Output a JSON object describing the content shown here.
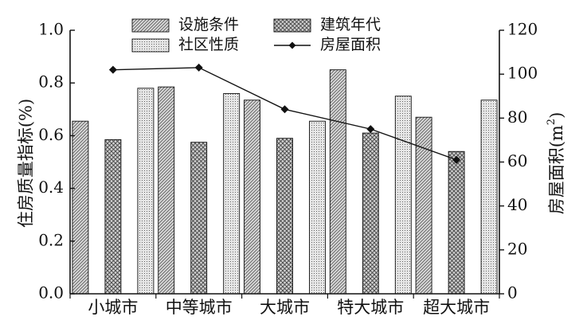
{
  "chart_data": {
    "type": "bar",
    "categories": [
      "小城市",
      "中等城市",
      "大城市",
      "特大城市",
      "超大城市"
    ],
    "series": [
      {
        "name": "设施条件",
        "axis": "left",
        "pattern": "diagonal",
        "values": [
          0.655,
          0.785,
          0.735,
          0.85,
          0.67
        ]
      },
      {
        "name": "建筑年代",
        "axis": "left",
        "pattern": "crosshatch",
        "values": [
          0.585,
          0.575,
          0.59,
          0.61,
          0.54
        ]
      },
      {
        "name": "社区性质",
        "axis": "left",
        "pattern": "dots",
        "values": [
          0.78,
          0.76,
          0.655,
          0.75,
          0.735
        ]
      },
      {
        "name": "房屋面积",
        "axis": "right",
        "type": "line",
        "marker": "diamond",
        "values": [
          102,
          103,
          84,
          75,
          61
        ]
      }
    ],
    "ylabel": "住房质量指标(%)",
    "ylabel_right_prefix": "房屋面积(m",
    "ylabel_right_sup": "2",
    "ylabel_right_suffix": ")",
    "ylim": [
      0,
      1.0
    ],
    "ylim_right": [
      0,
      120
    ],
    "yticks": [
      "0.0",
      "0.2",
      "0.4",
      "0.6",
      "0.8",
      "1.0"
    ],
    "yticks_right": [
      "0",
      "20",
      "40",
      "60",
      "80",
      "100",
      "120"
    ],
    "grid": false,
    "legend_position": "top-center"
  },
  "colors": {
    "bar_fill": "#d4d4d4",
    "stroke": "#111111",
    "line": "#111111"
  }
}
